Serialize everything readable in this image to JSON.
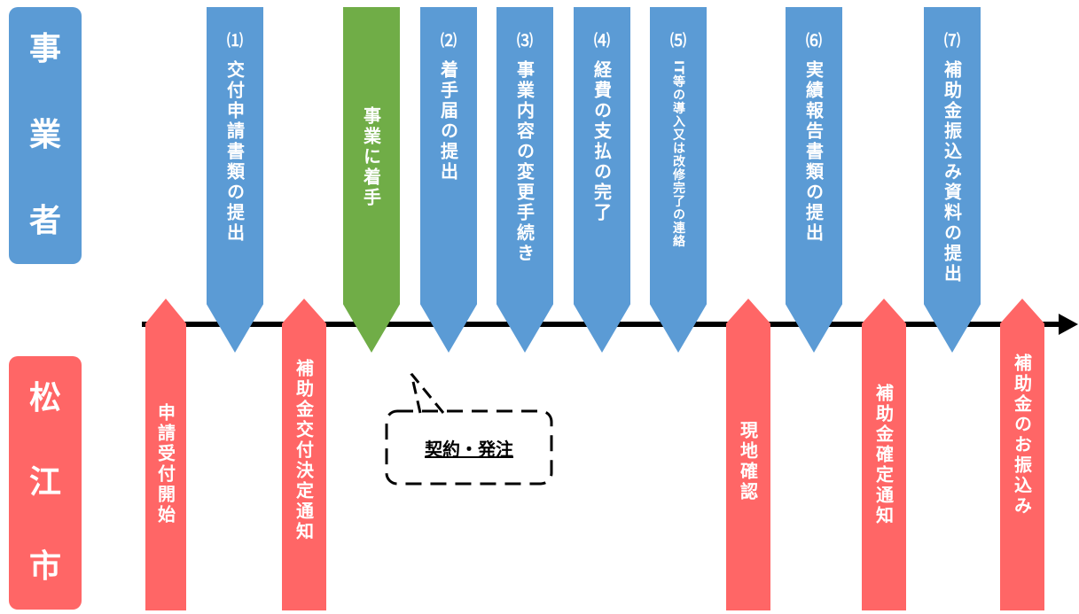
{
  "actors": {
    "business": {
      "chars": [
        "事",
        "業",
        "者"
      ],
      "color": "#5b9bd5"
    },
    "city": {
      "chars": [
        "松",
        "江",
        "市"
      ],
      "color": "#ff6666"
    }
  },
  "colors": {
    "blue": "#5b9bd5",
    "green": "#70ad47",
    "red": "#ff6666",
    "line": "#000000"
  },
  "business_steps": [
    {
      "num": "⑴",
      "label": "交付申請書類の提出"
    },
    {
      "num": "",
      "label": "事業に着手"
    },
    {
      "num": "⑵",
      "label": "着手届の提出"
    },
    {
      "num": "⑶",
      "label": "事業内容の変更手続き"
    },
    {
      "num": "⑷",
      "label": "経費の支払の完了"
    },
    {
      "num": "⑸",
      "label": "IT等の導入又は改修完了の連絡"
    },
    {
      "num": "⑹",
      "label": "実績報告書類の提出"
    },
    {
      "num": "⑺",
      "label": "補助金振込み資料の提出"
    }
  ],
  "city_steps": [
    {
      "label": "申請受付開始"
    },
    {
      "label": "補助金交付決定通知"
    },
    {
      "label": "現地確認"
    },
    {
      "label": "補助金確定通知"
    },
    {
      "label": "補助金のお振込み"
    }
  ],
  "callout": {
    "label": "契約・発注"
  }
}
